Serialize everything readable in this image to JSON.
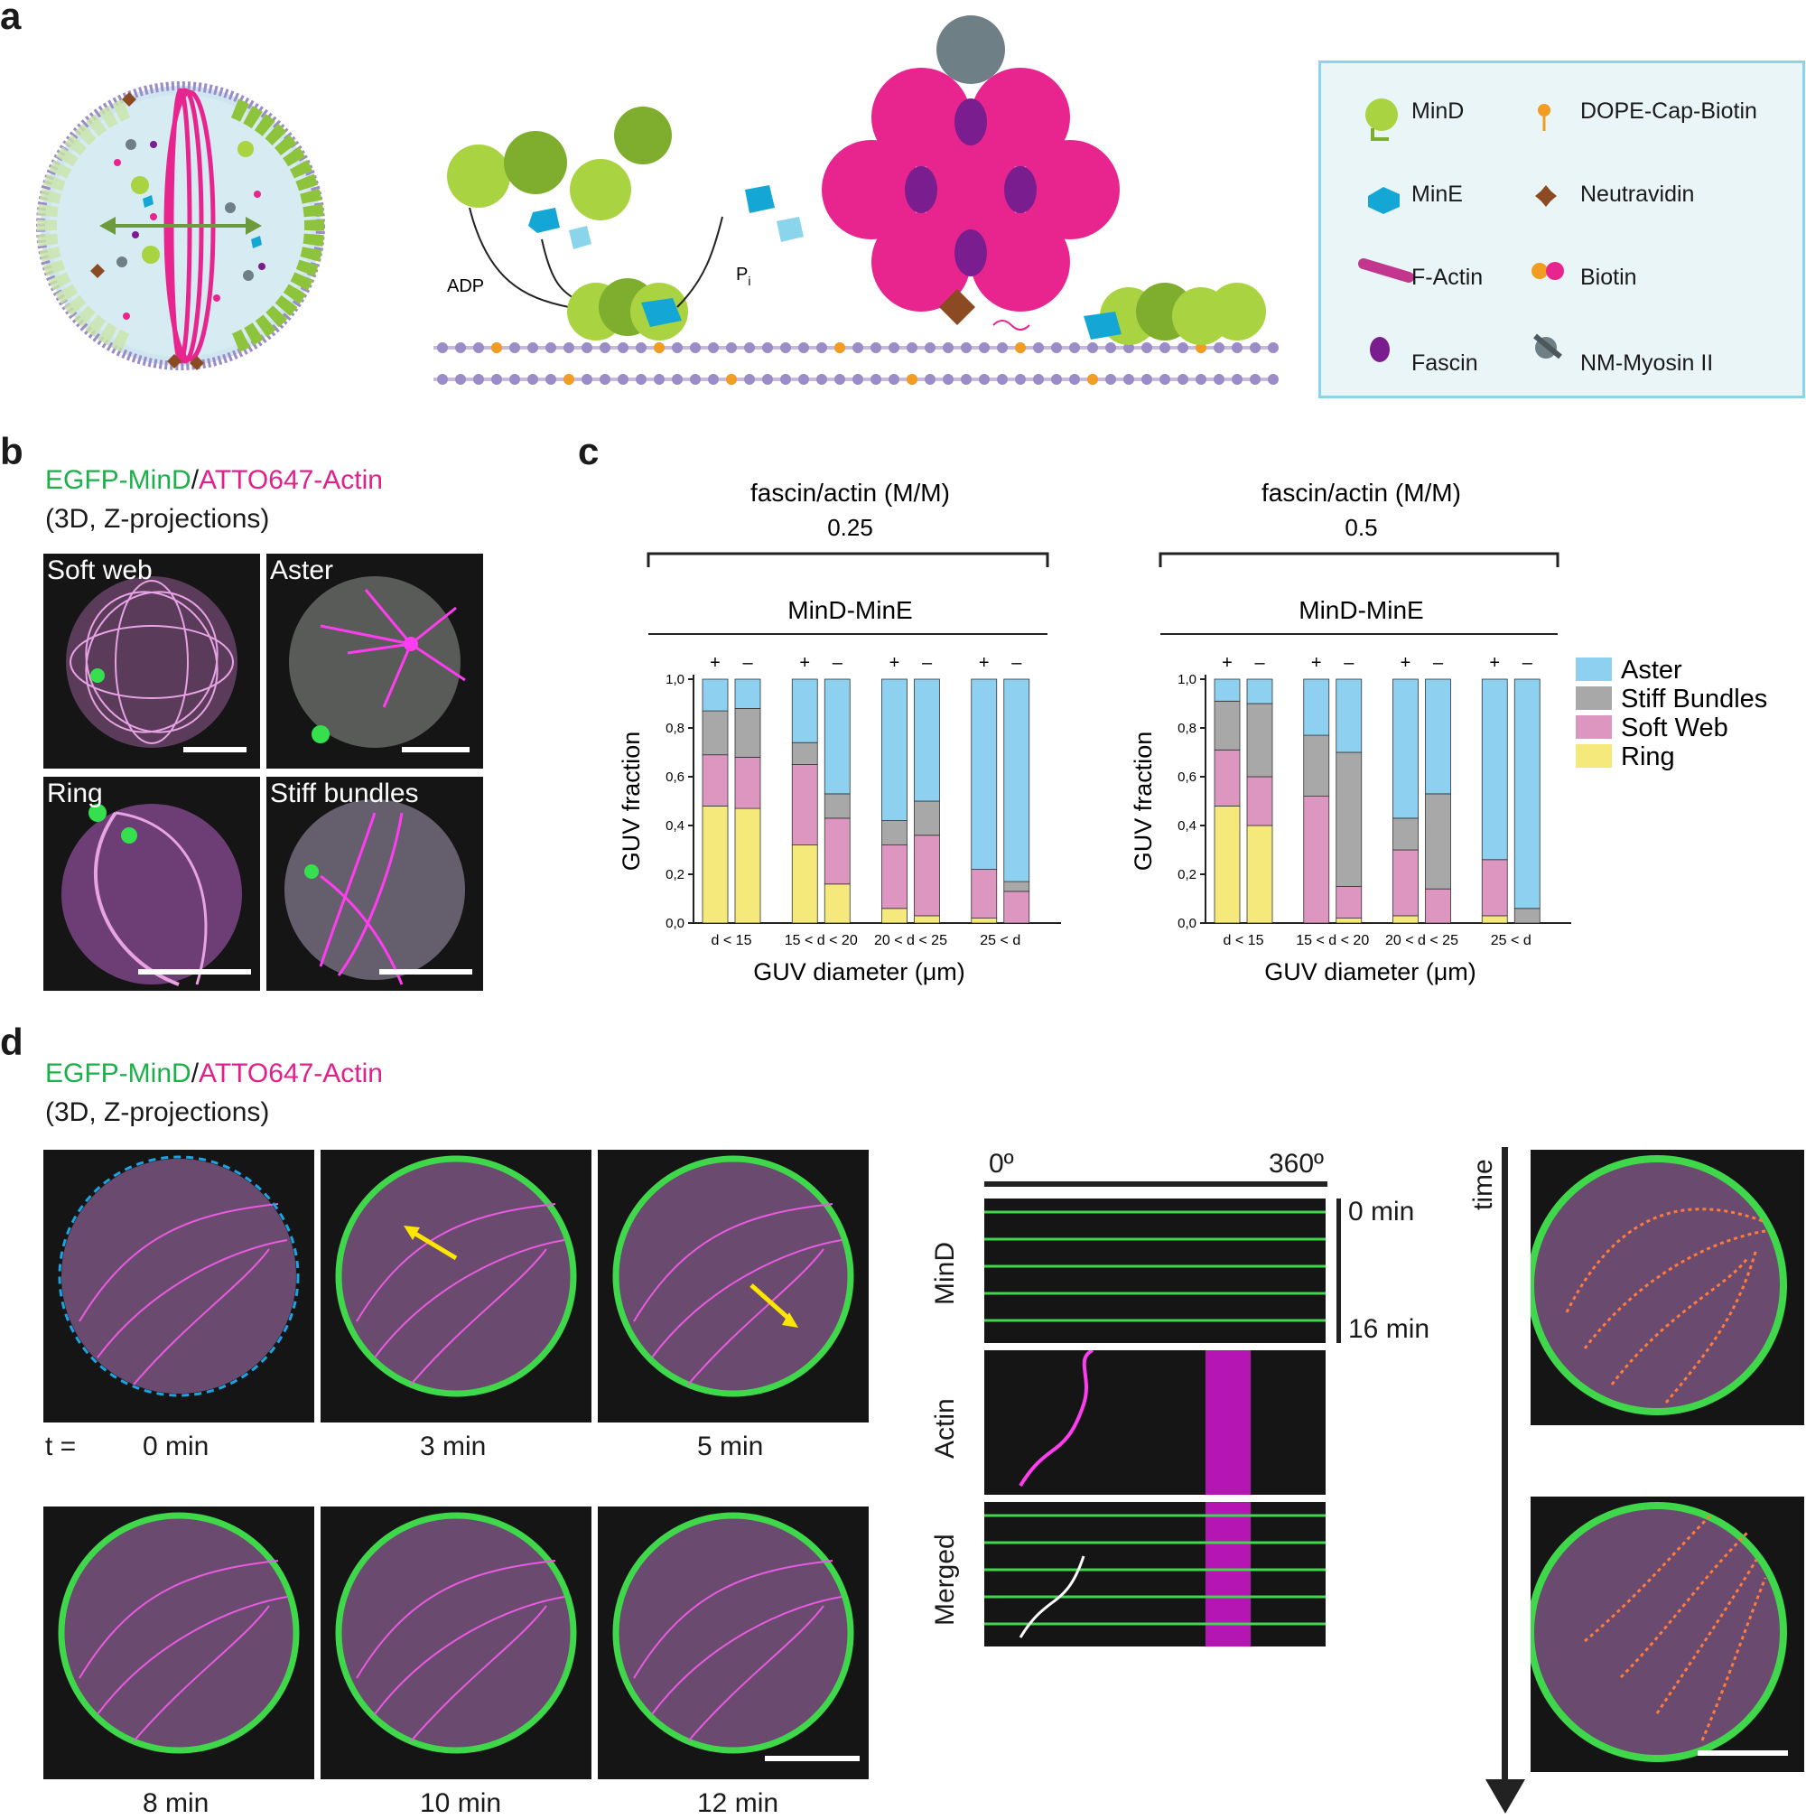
{
  "panels": {
    "a": "a",
    "b": "b",
    "c": "c",
    "d": "d"
  },
  "panel_a": {
    "labels": {
      "adp": "ADP",
      "pi": "P",
      "pi_sub": "i"
    },
    "legend": [
      {
        "name": "MinD",
        "icon": "mind-icon"
      },
      {
        "name": "DOPE-Cap-Biotin",
        "icon": "dope-icon"
      },
      {
        "name": "MinE",
        "icon": "mine-icon"
      },
      {
        "name": "Neutravidin",
        "icon": "neutravidin-icon"
      },
      {
        "name": "F-Actin",
        "icon": "actin-icon"
      },
      {
        "name": "Biotin",
        "icon": "biotin-icon"
      },
      {
        "name": "Fascin",
        "icon": "fascin-icon"
      },
      {
        "name": "NM-Myosin II",
        "icon": "myosin-icon"
      }
    ]
  },
  "panel_b": {
    "title_green": "EGFP-MinD",
    "title_sep": "/",
    "title_magenta": "ATTO647-Actin",
    "subtitle": "(3D, Z-projections)",
    "images": [
      "Soft web",
      "Aster",
      "Ring",
      "Stiff bundles"
    ]
  },
  "panel_c": {
    "x_title": "GUV diameter (μm)",
    "y_title": "GUV fraction",
    "colors": {
      "Aster": "#8dd0ef",
      "Stiff Bundles": "#a8a8a8",
      "Soft Web": "#dc96c0",
      "Ring": "#f4e97a"
    }
  },
  "chart_data": [
    {
      "type": "bar",
      "stacked": true,
      "header": "fascin/actin (M/M)",
      "ratio": "0.25",
      "subheader": "MinD-MinE",
      "xlabel": "GUV diameter (μm)",
      "ylabel": "GUV fraction",
      "ylim": [
        0,
        1
      ],
      "yticks": [
        "0,0",
        "0,2",
        "0,4",
        "0,6",
        "0,8",
        "1,0"
      ],
      "categories": [
        "d < 15",
        "15 < d < 20",
        "20 < d < 25",
        "25 < d"
      ],
      "conditions": [
        "+",
        "–"
      ],
      "series": [
        {
          "name": "Ring",
          "values": [
            [
              0.48,
              0.47
            ],
            [
              0.32,
              0.16
            ],
            [
              0.06,
              0.03
            ],
            [
              0.02,
              0.0
            ]
          ]
        },
        {
          "name": "Soft Web",
          "values": [
            [
              0.21,
              0.21
            ],
            [
              0.33,
              0.27
            ],
            [
              0.26,
              0.33
            ],
            [
              0.2,
              0.13
            ]
          ]
        },
        {
          "name": "Stiff Bundles",
          "values": [
            [
              0.18,
              0.2
            ],
            [
              0.09,
              0.1
            ],
            [
              0.1,
              0.14
            ],
            [
              0.0,
              0.04
            ]
          ]
        },
        {
          "name": "Aster",
          "values": [
            [
              0.13,
              0.12
            ],
            [
              0.26,
              0.47
            ],
            [
              0.58,
              0.5
            ],
            [
              0.78,
              0.83
            ]
          ]
        }
      ]
    },
    {
      "type": "bar",
      "stacked": true,
      "header": "fascin/actin (M/M)",
      "ratio": "0.5",
      "subheader": "MinD-MinE",
      "xlabel": "GUV diameter (μm)",
      "ylabel": "GUV fraction",
      "ylim": [
        0,
        1
      ],
      "yticks": [
        "0,0",
        "0,2",
        "0,4",
        "0,6",
        "0,8",
        "1,0"
      ],
      "categories": [
        "d < 15",
        "15 < d < 20",
        "20 < d < 25",
        "25 < d"
      ],
      "conditions": [
        "+",
        "–"
      ],
      "series": [
        {
          "name": "Ring",
          "values": [
            [
              0.48,
              0.4
            ],
            [
              0.0,
              0.02
            ],
            [
              0.03,
              0.0
            ],
            [
              0.03,
              0.0
            ]
          ]
        },
        {
          "name": "Soft Web",
          "values": [
            [
              0.23,
              0.2
            ],
            [
              0.52,
              0.13
            ],
            [
              0.27,
              0.14
            ],
            [
              0.23,
              0.0
            ]
          ]
        },
        {
          "name": "Stiff Bundles",
          "values": [
            [
              0.2,
              0.3
            ],
            [
              0.25,
              0.55
            ],
            [
              0.13,
              0.39
            ],
            [
              0.0,
              0.06
            ]
          ]
        },
        {
          "name": "Aster",
          "values": [
            [
              0.09,
              0.1
            ],
            [
              0.23,
              0.3
            ],
            [
              0.57,
              0.47
            ],
            [
              0.74,
              0.94
            ]
          ]
        }
      ],
      "legend": [
        "Aster",
        "Stiff Bundles",
        "Soft Web",
        "Ring"
      ]
    }
  ],
  "panel_d": {
    "title_green": "EGFP-MinD",
    "title_sep": "/",
    "title_magenta": "ATTO647-Actin",
    "subtitle": "(3D, Z-projections)",
    "t_label": "t =",
    "times": [
      "0 min",
      "3 min",
      "5 min",
      "8 min",
      "10 min",
      "12 min"
    ],
    "kymo_angle_start": "0º",
    "kymo_angle_end": "360º",
    "kymo_rows": [
      "MinD",
      "Actin",
      "Merged"
    ],
    "kymo_time_start": "0 min",
    "kymo_time_end": "16 min",
    "time_axis": "time"
  }
}
